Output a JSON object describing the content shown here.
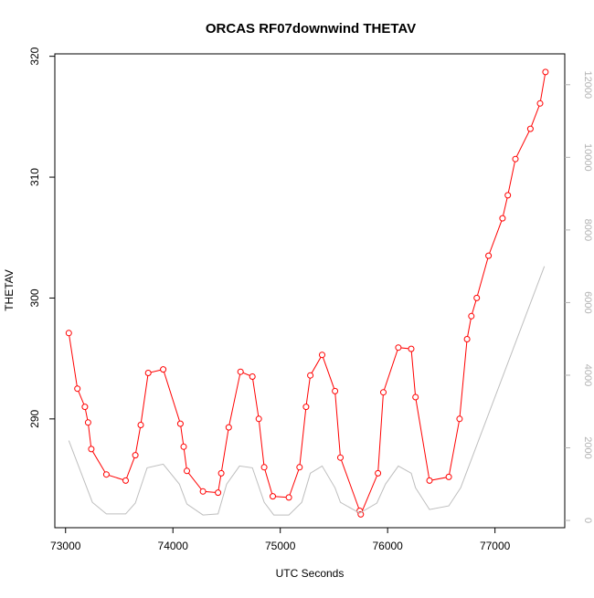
{
  "chart_data": {
    "type": "line",
    "title": "ORCAS RF07downwind THETAV",
    "xlabel": "UTC Seconds",
    "ylabel": "THETAV",
    "xlim": [
      72900,
      77650
    ],
    "ylim": [
      281.0,
      320.2
    ],
    "y2lim": [
      -200,
      12850
    ],
    "x_ticks": [
      "73000",
      "74000",
      "75000",
      "76000",
      "77000"
    ],
    "y_ticks": [
      "290",
      "300",
      "310",
      "320"
    ],
    "y2_ticks": [
      "0",
      "2000",
      "4000",
      "6000",
      "8000",
      "10000",
      "12000"
    ],
    "series": [
      {
        "color": "#ff0000",
        "axis": "left",
        "marker": "open-circle",
        "x": [
          73030,
          73110,
          73180,
          73210,
          73240,
          73380,
          73560,
          73650,
          73700,
          73770,
          73910,
          74070,
          74100,
          74130,
          74280,
          74420,
          74450,
          74520,
          74630,
          74740,
          74800,
          74850,
          74930,
          75080,
          75180,
          75240,
          75280,
          75390,
          75510,
          75560,
          75740,
          75750,
          75910,
          75960,
          76100,
          76220,
          76260,
          76390,
          76570,
          76670,
          76740,
          76780,
          76830,
          76940,
          77070,
          77120,
          77190,
          77330,
          77420,
          77470
        ],
        "y": [
          297.1,
          292.5,
          291.0,
          289.7,
          287.5,
          285.4,
          284.9,
          287.0,
          289.5,
          293.8,
          294.1,
          289.6,
          287.7,
          285.7,
          284.0,
          283.9,
          285.5,
          289.3,
          293.9,
          293.5,
          290.0,
          286.0,
          283.6,
          283.5,
          286.0,
          291.0,
          293.6,
          295.3,
          292.3,
          286.8,
          282.4,
          282.1,
          285.5,
          292.2,
          295.9,
          295.8,
          291.8,
          284.9,
          285.2,
          290.0,
          296.6,
          298.5,
          300.0,
          303.5,
          306.6,
          308.5,
          311.5,
          314.0,
          316.1,
          318.7
        ]
      },
      {
        "color": "#bebebe",
        "axis": "right",
        "marker": "none",
        "x": [
          73030,
          73250,
          73380,
          73560,
          73650,
          73760,
          73910,
          74060,
          74130,
          74280,
          74420,
          74500,
          74620,
          74740,
          74850,
          74940,
          75080,
          75200,
          75280,
          75390,
          75510,
          75560,
          75740,
          75900,
          75980,
          76100,
          76220,
          76260,
          76390,
          76570,
          76680,
          77460
        ],
        "y": [
          2200,
          500,
          180,
          180,
          480,
          1450,
          1550,
          1000,
          450,
          150,
          180,
          1000,
          1500,
          1450,
          500,
          150,
          150,
          500,
          1300,
          1500,
          900,
          500,
          200,
          480,
          1000,
          1500,
          1300,
          900,
          300,
          400,
          900,
          7000
        ]
      }
    ]
  }
}
